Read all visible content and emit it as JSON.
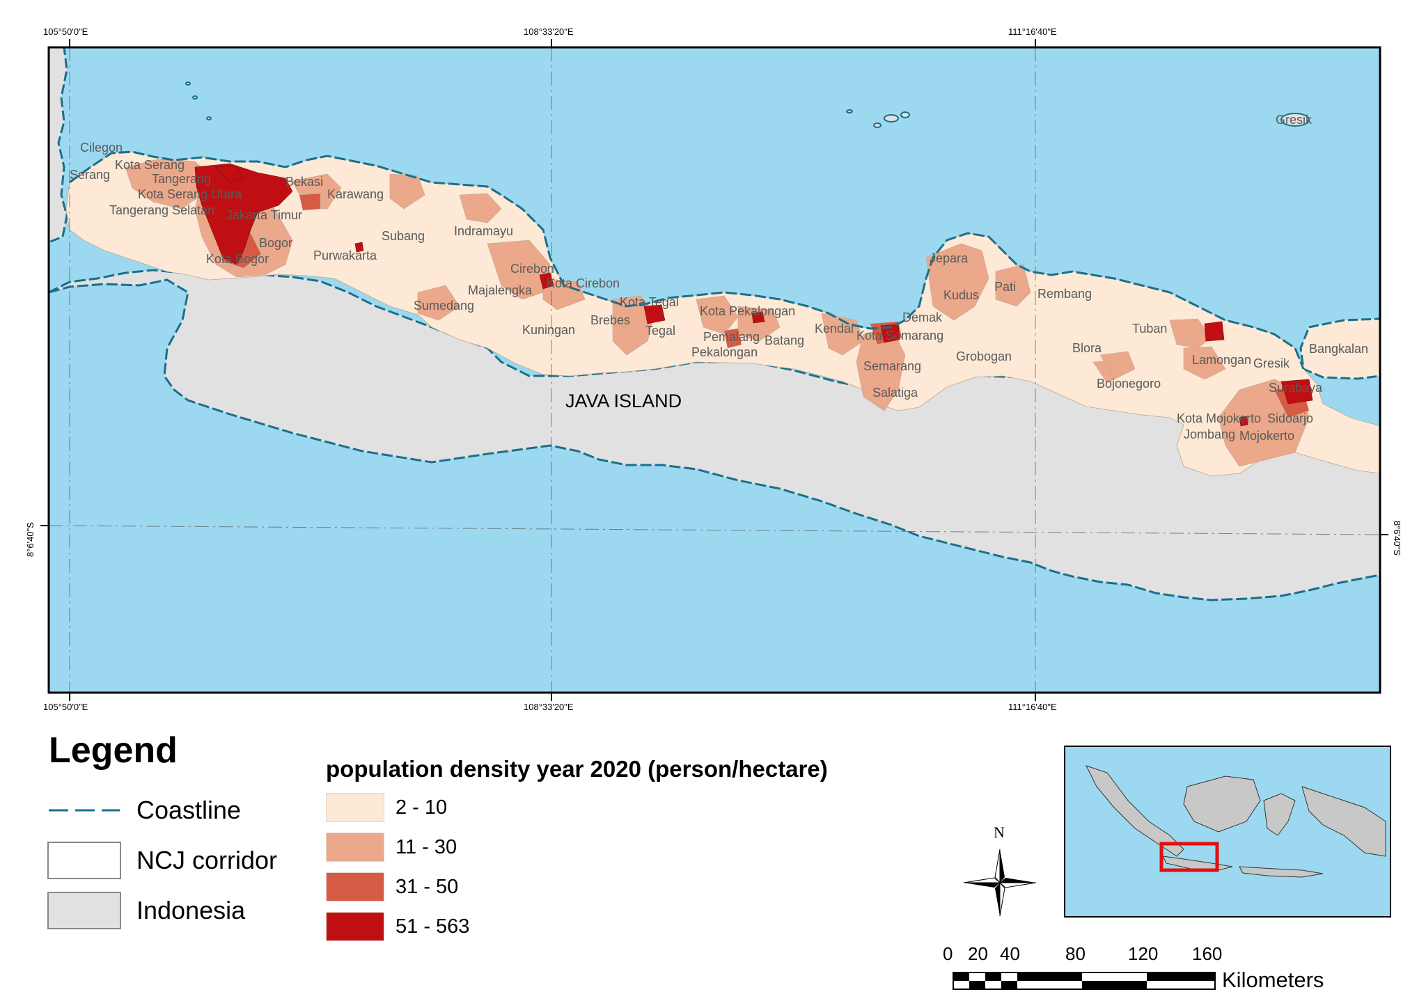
{
  "map": {
    "grid_top": [
      "105°50'0\"E",
      "108°33'20\"E",
      "111°16'40\"E"
    ],
    "grid_bottom": [
      "105°50'0\"E",
      "108°33'20\"E",
      "111°16'40\"E"
    ],
    "grid_left": "8°6'40\"S",
    "grid_right": "8°6'40\"S",
    "island_label": "JAVA ISLAND",
    "places": [
      "Cilegon",
      "Kota Serang",
      "Serang",
      "Tangerang",
      "Kota Serang Utara",
      "Tangerang Selatan",
      "Jakarta Timur",
      "Bekasi",
      "Karawang",
      "Bogor",
      "Kota Bogor",
      "Purwakarta",
      "Subang",
      "Indramayu",
      "Cirebon",
      "Kota Cirebon",
      "Majalengka",
      "Sumedang",
      "Kuningan",
      "Brebes",
      "Kota Tegal",
      "Tegal",
      "Kota Pekalongan",
      "Pemalang",
      "Pekalongan",
      "Batang",
      "Kendal",
      "Kota Semarang",
      "Demak",
      "Semarang",
      "Salatiga",
      "Jepara",
      "Kudus",
      "Pati",
      "Grobogan",
      "Rembang",
      "Blora",
      "Tuban",
      "Bojonegoro",
      "Lamongan",
      "Gresik",
      "Bangkalan",
      "Surabaya",
      "Sidoarjo",
      "Kota Mojokerto",
      "Jombang",
      "Mojokerto",
      "Gresik"
    ],
    "colors": {
      "sea": "#9cd9f0",
      "land": "#e1e1e1",
      "coastline": "#1a6f8a",
      "d1": "#fde9d6",
      "d2": "#eba88a",
      "d3": "#d65b45",
      "d4": "#c00f12"
    }
  },
  "legend": {
    "title": "Legend",
    "items": [
      {
        "label": "Coastline",
        "icon": "coastline-dash-line"
      },
      {
        "label": "NCJ corridor",
        "icon": "white-box"
      },
      {
        "label": "Indonesia",
        "icon": "grey-box"
      }
    ]
  },
  "density": {
    "title": "population density year 2020 (person/hectare)",
    "classes": [
      {
        "label": "2 - 10",
        "color": "#fde9d6"
      },
      {
        "label": "11 - 30",
        "color": "#eba88a"
      },
      {
        "label": "31 - 50",
        "color": "#d65b45"
      },
      {
        "label": "51 - 563",
        "color": "#c00f12"
      }
    ]
  },
  "north_arrow": {
    "label": "N"
  },
  "scale_bar": {
    "ticks": [
      "0",
      "20",
      "40",
      "80",
      "120",
      "160"
    ],
    "unit": "Kilometers"
  },
  "inset": {
    "description_icon": "indonesia-locator-map",
    "highlight_color": "#e01010"
  }
}
